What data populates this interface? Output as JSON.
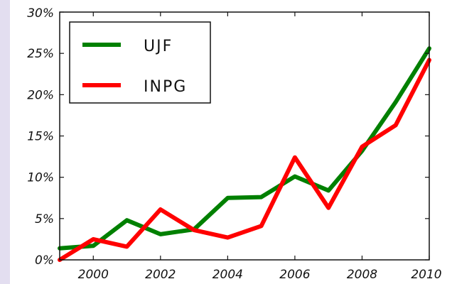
{
  "chart_data": {
    "type": "line",
    "title": "",
    "xlabel": "",
    "ylabel": "",
    "x": [
      1999,
      2000,
      2001,
      2002,
      2003,
      2004,
      2005,
      2006,
      2007,
      2008,
      2009,
      2010
    ],
    "xlim": [
      1999,
      2010
    ],
    "ylim": [
      0,
      30
    ],
    "x_ticks": [
      2000,
      2002,
      2004,
      2006,
      2008,
      2010
    ],
    "y_ticks": [
      0,
      5,
      10,
      15,
      20,
      25,
      30
    ],
    "x_tick_labels": [
      "2000",
      "2002",
      "2004",
      "2006",
      "2008",
      "2010"
    ],
    "y_tick_labels": [
      "0%",
      "5%",
      "10%",
      "15%",
      "20%",
      "25%",
      "30%"
    ],
    "grid": false,
    "legend_position": "top-left",
    "series": [
      {
        "name": "UJF",
        "color": "#008000",
        "values": [
          1.4,
          1.7,
          4.8,
          3.1,
          3.7,
          7.5,
          7.6,
          10.1,
          8.4,
          13.2,
          19.1,
          25.6
        ]
      },
      {
        "name": "INPG",
        "color": "#ff0000",
        "values": [
          0.0,
          2.5,
          1.6,
          6.1,
          3.6,
          2.7,
          4.1,
          12.4,
          6.3,
          13.7,
          16.3,
          24.2
        ]
      }
    ]
  }
}
